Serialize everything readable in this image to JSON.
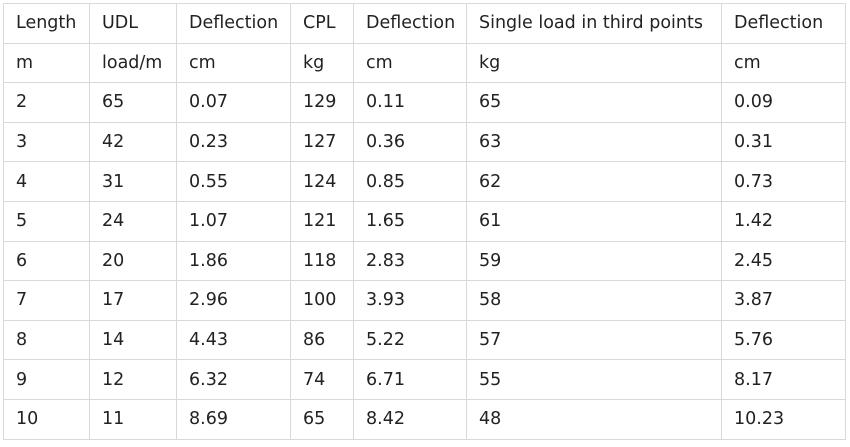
{
  "table": {
    "header": [
      "Length",
      "UDL",
      "Deflection",
      "CPL",
      "Deflection",
      "Single load in third points",
      "Deflection"
    ],
    "units": [
      "m",
      "load/m",
      "cm",
      "kg",
      "cm",
      "kg",
      "cm"
    ],
    "rows": [
      [
        "2",
        "65",
        "0.07",
        "129",
        "0.11",
        "65",
        "0.09"
      ],
      [
        "3",
        "42",
        "0.23",
        "127",
        "0.36",
        "63",
        "0.31"
      ],
      [
        "4",
        "31",
        "0.55",
        "124",
        "0.85",
        "62",
        "0.73"
      ],
      [
        "5",
        "24",
        "1.07",
        "121",
        "1.65",
        "61",
        "1.42"
      ],
      [
        "6",
        "20",
        "1.86",
        "118",
        "2.83",
        "59",
        "2.45"
      ],
      [
        "7",
        "17",
        "2.96",
        "100",
        "3.93",
        "58",
        "3.87"
      ],
      [
        "8",
        "14",
        "4.43",
        "86",
        "5.22",
        "57",
        "5.76"
      ],
      [
        "9",
        "12",
        "6.32",
        "74",
        "6.71",
        "55",
        "8.17"
      ],
      [
        "10",
        "11",
        "8.69",
        "65",
        "8.42",
        "48",
        "10.23"
      ]
    ]
  }
}
